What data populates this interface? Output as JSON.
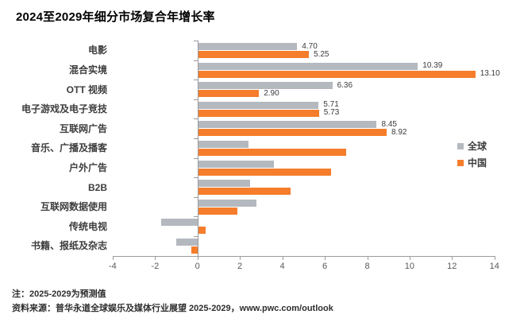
{
  "title": "2024至2029年细分市场复合年增长率",
  "legend": [
    {
      "label": "全球",
      "color": "#b4b9bf"
    },
    {
      "label": "中国",
      "color": "#f57d2b"
    }
  ],
  "notes": {
    "forecast": "注：2025-2029为预测值",
    "source": "资料来源：普华永道全球娱乐及媒体行业展望 2025-2029，www.pwc.com/outlook"
  },
  "chart_data": {
    "type": "bar",
    "orientation": "horizontal",
    "title": "2024至2029年细分市场复合年增长率",
    "xlim": [
      -4,
      14
    ],
    "x_ticks": [
      -4,
      -2,
      0,
      2,
      4,
      6,
      8,
      10,
      12,
      14
    ],
    "grid": false,
    "legend_position": "right",
    "categories": [
      "电影",
      "混合实境",
      "OTT 视频",
      "电子游戏及电子竞技",
      "互联网广告",
      "音乐、广播及播客",
      "户外广告",
      "B2B",
      "互联网数据使用",
      "传统电视",
      "书籍、报纸及杂志"
    ],
    "series": [
      {
        "name": "全球",
        "color": "#b4b9bf",
        "values": [
          4.7,
          10.39,
          6.36,
          5.71,
          8.45,
          2.4,
          3.6,
          2.5,
          2.8,
          -1.7,
          -1.0
        ],
        "value_labels": [
          "4.70",
          "10.39",
          "6.36",
          "5.71",
          "8.45",
          null,
          null,
          null,
          null,
          null,
          null
        ]
      },
      {
        "name": "中国",
        "color": "#f57d2b",
        "values": [
          5.25,
          13.1,
          2.9,
          5.73,
          8.92,
          7.0,
          6.3,
          4.4,
          1.9,
          0.4,
          -0.3
        ],
        "value_labels": [
          "5.25",
          "13.10",
          "2.90",
          "5.73",
          "8.92",
          null,
          null,
          null,
          null,
          null,
          null
        ]
      }
    ]
  }
}
